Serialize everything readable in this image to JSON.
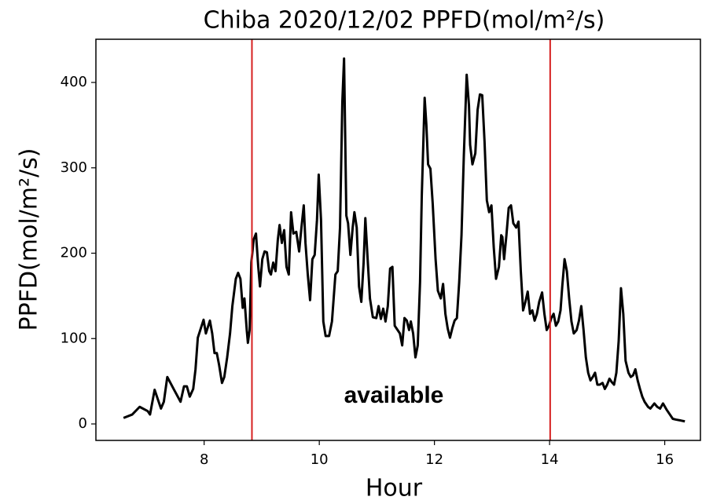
{
  "chart_data": {
    "type": "line",
    "title": "Chiba 2020/12/02 PPFD(mol/m²/s)",
    "xlabel": "Hour",
    "ylabel": "PPFD(mol/m²/s)",
    "annotation": "available",
    "color": "#000000",
    "vlines": [
      8.83,
      14.01
    ],
    "vline_color": "#d62020",
    "xlim": [
      6.12,
      16.62
    ],
    "ylim": [
      -19.3,
      450.6
    ],
    "xticks": [
      8,
      10,
      12,
      14,
      16
    ],
    "yticks": [
      0,
      100,
      200,
      300,
      400
    ],
    "grid": false,
    "x": [
      6.6,
      6.75,
      6.88,
      7.02,
      7.06,
      7.14,
      7.25,
      7.3,
      7.36,
      7.47,
      7.59,
      7.65,
      7.7,
      7.75,
      7.81,
      7.85,
      7.89,
      7.99,
      8.03,
      8.1,
      8.14,
      8.18,
      8.22,
      8.26,
      8.31,
      8.35,
      8.4,
      8.45,
      8.49,
      8.55,
      8.59,
      8.63,
      8.67,
      8.7,
      8.74,
      8.76,
      8.79,
      8.82,
      8.86,
      8.9,
      8.94,
      8.97,
      9.01,
      9.05,
      9.09,
      9.13,
      9.16,
      9.2,
      9.24,
      9.28,
      9.31,
      9.35,
      9.39,
      9.43,
      9.47,
      9.51,
      9.55,
      9.6,
      9.65,
      9.69,
      9.73,
      9.76,
      9.8,
      9.84,
      9.88,
      9.92,
      9.96,
      9.99,
      10.03,
      10.07,
      10.11,
      10.17,
      10.22,
      10.28,
      10.32,
      10.36,
      10.4,
      10.43,
      10.47,
      10.5,
      10.54,
      10.58,
      10.61,
      10.65,
      10.69,
      10.73,
      10.77,
      10.8,
      10.84,
      10.88,
      10.93,
      10.99,
      11.03,
      11.07,
      11.11,
      11.15,
      11.19,
      11.23,
      11.27,
      11.31,
      11.36,
      11.4,
      11.44,
      11.48,
      11.52,
      11.56,
      11.59,
      11.63,
      11.67,
      11.71,
      11.75,
      11.78,
      11.83,
      11.86,
      11.89,
      11.93,
      11.97,
      12.02,
      12.06,
      12.11,
      12.15,
      12.19,
      12.23,
      12.27,
      12.31,
      12.35,
      12.39,
      12.43,
      12.47,
      12.51,
      12.56,
      12.6,
      12.62,
      12.66,
      12.71,
      12.75,
      12.79,
      12.83,
      12.87,
      12.91,
      12.95,
      12.99,
      13.03,
      13.07,
      13.12,
      13.16,
      13.18,
      13.21,
      13.25,
      13.29,
      13.33,
      13.37,
      13.42,
      13.46,
      13.5,
      13.54,
      13.58,
      13.62,
      13.66,
      13.7,
      13.74,
      13.78,
      13.82,
      13.87,
      13.91,
      13.95,
      13.99,
      14.03,
      14.07,
      14.11,
      14.15,
      14.19,
      14.22,
      14.26,
      14.3,
      14.34,
      14.38,
      14.42,
      14.47,
      14.51,
      14.55,
      14.59,
      14.63,
      14.67,
      14.71,
      14.75,
      14.79,
      14.83,
      14.87,
      14.92,
      14.96,
      15.0,
      15.04,
      15.08,
      15.12,
      15.16,
      15.2,
      15.24,
      15.28,
      15.32,
      15.37,
      15.41,
      15.45,
      15.49,
      15.53,
      15.57,
      15.61,
      15.65,
      15.71,
      15.75,
      15.82,
      15.87,
      15.92,
      15.97,
      16.03,
      16.09,
      16.14,
      16.2,
      16.28,
      16.35
    ],
    "values": [
      7,
      11,
      20,
      15,
      11,
      40,
      18,
      26,
      55,
      41,
      26,
      44,
      44,
      32,
      41,
      64,
      101,
      122,
      106,
      121,
      106,
      83,
      83,
      69,
      48,
      55,
      78,
      106,
      138,
      170,
      177,
      170,
      136,
      147,
      110,
      95,
      110,
      189,
      216,
      223,
      184,
      161,
      193,
      202,
      201,
      179,
      175,
      189,
      179,
      216,
      233,
      212,
      227,
      184,
      175,
      248,
      223,
      225,
      202,
      230,
      256,
      212,
      175,
      145,
      193,
      198,
      239,
      292,
      239,
      120,
      103,
      103,
      120,
      175,
      179,
      230,
      377,
      428,
      244,
      235,
      198,
      230,
      248,
      230,
      161,
      143,
      189,
      241,
      193,
      147,
      125,
      124,
      138,
      123,
      135,
      120,
      138,
      182,
      184,
      115,
      110,
      106,
      92,
      124,
      121,
      110,
      120,
      106,
      78,
      92,
      166,
      267,
      382,
      350,
      304,
      299,
      258,
      193,
      156,
      147,
      164,
      129,
      112,
      101,
      112,
      121,
      124,
      166,
      221,
      313,
      409,
      373,
      327,
      304,
      317,
      368,
      386,
      385,
      331,
      262,
      248,
      256,
      207,
      170,
      184,
      221,
      219,
      193,
      221,
      253,
      256,
      235,
      230,
      237,
      179,
      133,
      143,
      155,
      129,
      133,
      121,
      129,
      143,
      154,
      129,
      110,
      115,
      124,
      129,
      115,
      120,
      133,
      161,
      193,
      179,
      147,
      120,
      106,
      110,
      121,
      138,
      110,
      78,
      60,
      51,
      55,
      60,
      46,
      46,
      48,
      41,
      46,
      53,
      49,
      46,
      60,
      97,
      159,
      129,
      74,
      60,
      55,
      57,
      64,
      51,
      41,
      32,
      26,
      20,
      18,
      24,
      20,
      18,
      24,
      17,
      11,
      6,
      5,
      4,
      3
    ]
  }
}
